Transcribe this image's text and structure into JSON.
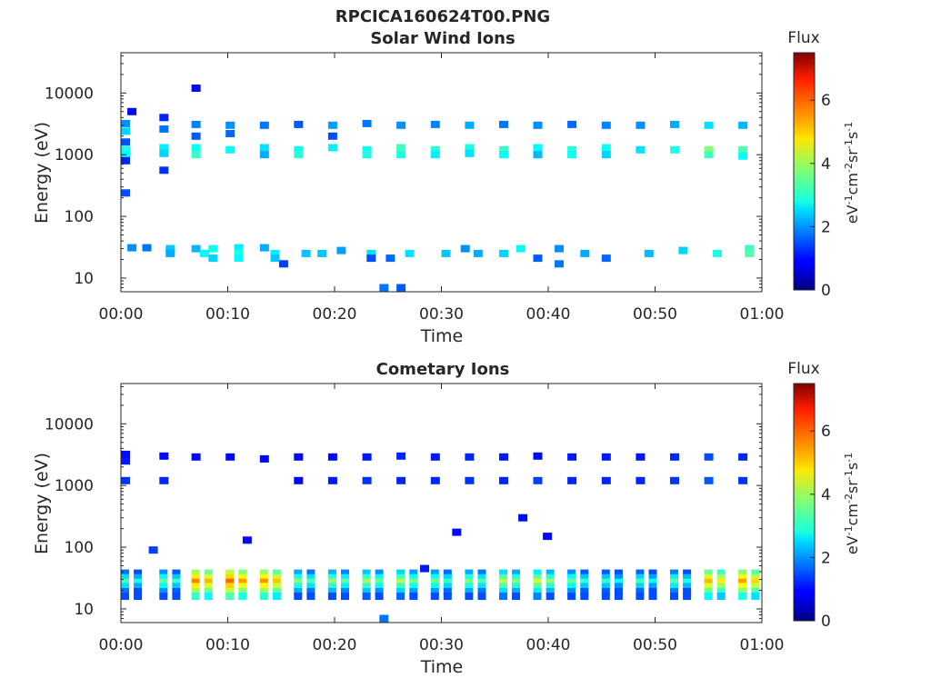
{
  "figure": {
    "title": "RPCICA160624T00.PNG"
  },
  "chart_data": [
    {
      "type": "heatmap",
      "title": "Solar Wind Ions",
      "xlabel": "Time",
      "ylabel": "Energy (eV)",
      "x_ticks": [
        "00:00",
        "00:10",
        "00:20",
        "00:30",
        "00:40",
        "00:50",
        "01:00"
      ],
      "xlim": [
        "00:00",
        "01:00"
      ],
      "y_scale": "log",
      "y_ticks": [
        "10",
        "100",
        "1000",
        "10000"
      ],
      "ylim": [
        6,
        45000
      ],
      "colorbar": {
        "title": "Flux",
        "label": "eV-1cm-2sr-1s-1",
        "ticks": [
          "0",
          "2",
          "4",
          "6"
        ],
        "range": [
          0,
          7.5
        ]
      },
      "scan_times_min": [
        0.0,
        3.6,
        6.6,
        9.8,
        13.0,
        16.2,
        19.4,
        22.6,
        25.8,
        29.0,
        32.2,
        35.4,
        38.6,
        41.8,
        45.0,
        48.2,
        51.4,
        54.6,
        57.8
      ],
      "cells": [
        {
          "t": 0.0,
          "e": 3200,
          "f": 2.0
        },
        {
          "t": 0.0,
          "e": 2400,
          "f": 2.5
        },
        {
          "t": 0.0,
          "e": 1600,
          "f": 1.5
        },
        {
          "t": 0.0,
          "e": 1200,
          "f": 3.0
        },
        {
          "t": 0.0,
          "e": 1000,
          "f": 2.8
        },
        {
          "t": 0.0,
          "e": 800,
          "f": 1.2
        },
        {
          "t": 0.6,
          "e": 5000,
          "f": 1.0
        },
        {
          "t": 0.0,
          "e": 240,
          "f": 1.5
        },
        {
          "t": 3.6,
          "e": 4000,
          "f": 1.2
        },
        {
          "t": 3.6,
          "e": 2600,
          "f": 1.8
        },
        {
          "t": 3.6,
          "e": 1300,
          "f": 2.7
        },
        {
          "t": 3.6,
          "e": 1050,
          "f": 2.5
        },
        {
          "t": 3.6,
          "e": 560,
          "f": 1.3
        },
        {
          "t": 6.6,
          "e": 3100,
          "f": 1.9
        },
        {
          "t": 6.6,
          "e": 2000,
          "f": 1.6
        },
        {
          "t": 6.6,
          "e": 1300,
          "f": 2.9
        },
        {
          "t": 6.6,
          "e": 1000,
          "f": 3.2
        },
        {
          "t": 6.6,
          "e": 12000,
          "f": 1.0
        },
        {
          "t": 9.8,
          "e": 3000,
          "f": 2.0
        },
        {
          "t": 9.8,
          "e": 2200,
          "f": 1.7
        },
        {
          "t": 9.8,
          "e": 1200,
          "f": 2.8
        },
        {
          "t": 13.0,
          "e": 3000,
          "f": 1.8
        },
        {
          "t": 13.0,
          "e": 1300,
          "f": 2.6
        },
        {
          "t": 13.0,
          "e": 1000,
          "f": 2.2
        },
        {
          "t": 16.2,
          "e": 3100,
          "f": 1.6
        },
        {
          "t": 16.2,
          "e": 1200,
          "f": 2.9
        },
        {
          "t": 16.2,
          "e": 1000,
          "f": 3.1
        },
        {
          "t": 19.4,
          "e": 3000,
          "f": 2.1
        },
        {
          "t": 19.4,
          "e": 1300,
          "f": 2.7
        },
        {
          "t": 19.4,
          "e": 2000,
          "f": 1.5
        },
        {
          "t": 22.6,
          "e": 3200,
          "f": 1.8
        },
        {
          "t": 22.6,
          "e": 1200,
          "f": 2.9
        },
        {
          "t": 22.6,
          "e": 1000,
          "f": 3.0
        },
        {
          "t": 25.8,
          "e": 3000,
          "f": 2.0
        },
        {
          "t": 25.8,
          "e": 1300,
          "f": 3.3
        },
        {
          "t": 25.8,
          "e": 1000,
          "f": 3.0
        },
        {
          "t": 29.0,
          "e": 3100,
          "f": 1.9
        },
        {
          "t": 29.0,
          "e": 1200,
          "f": 3.1
        },
        {
          "t": 29.0,
          "e": 1000,
          "f": 2.7
        },
        {
          "t": 32.2,
          "e": 3000,
          "f": 2.2
        },
        {
          "t": 32.2,
          "e": 1300,
          "f": 3.0
        },
        {
          "t": 32.2,
          "e": 1050,
          "f": 2.6
        },
        {
          "t": 35.4,
          "e": 3100,
          "f": 1.8
        },
        {
          "t": 35.4,
          "e": 1200,
          "f": 3.2
        },
        {
          "t": 35.4,
          "e": 1000,
          "f": 2.9
        },
        {
          "t": 38.6,
          "e": 3000,
          "f": 2.0
        },
        {
          "t": 38.6,
          "e": 1300,
          "f": 2.8
        },
        {
          "t": 38.6,
          "e": 1000,
          "f": 2.3
        },
        {
          "t": 41.8,
          "e": 3100,
          "f": 1.7
        },
        {
          "t": 41.8,
          "e": 1200,
          "f": 3.1
        },
        {
          "t": 41.8,
          "e": 1000,
          "f": 2.9
        },
        {
          "t": 45.0,
          "e": 3000,
          "f": 1.9
        },
        {
          "t": 45.0,
          "e": 1300,
          "f": 2.9
        },
        {
          "t": 45.0,
          "e": 1000,
          "f": 2.5
        },
        {
          "t": 48.2,
          "e": 3000,
          "f": 2.0
        },
        {
          "t": 48.2,
          "e": 1200,
          "f": 2.6
        },
        {
          "t": 51.4,
          "e": 3100,
          "f": 2.2
        },
        {
          "t": 51.4,
          "e": 1200,
          "f": 3.0
        },
        {
          "t": 54.6,
          "e": 3000,
          "f": 2.6
        },
        {
          "t": 54.6,
          "e": 1200,
          "f": 3.8
        },
        {
          "t": 54.6,
          "e": 1000,
          "f": 3.3
        },
        {
          "t": 57.8,
          "e": 3000,
          "f": 2.3
        },
        {
          "t": 57.8,
          "e": 1200,
          "f": 3.4
        },
        {
          "t": 57.8,
          "e": 950,
          "f": 2.8
        },
        {
          "t": 0.6,
          "e": 31,
          "f": 2.0
        },
        {
          "t": 2.0,
          "e": 31,
          "f": 1.8
        },
        {
          "t": 4.2,
          "e": 30,
          "f": 2.4
        },
        {
          "t": 4.2,
          "e": 25,
          "f": 2.2
        },
        {
          "t": 6.6,
          "e": 30,
          "f": 2.3
        },
        {
          "t": 7.4,
          "e": 25,
          "f": 2.8
        },
        {
          "t": 8.2,
          "e": 21,
          "f": 2.5
        },
        {
          "t": 8.2,
          "e": 30,
          "f": 2.9
        },
        {
          "t": 10.6,
          "e": 31,
          "f": 2.7
        },
        {
          "t": 10.6,
          "e": 25,
          "f": 3.0
        },
        {
          "t": 10.6,
          "e": 21,
          "f": 2.8
        },
        {
          "t": 13.0,
          "e": 31,
          "f": 2.2
        },
        {
          "t": 14.0,
          "e": 25,
          "f": 2.7
        },
        {
          "t": 14.0,
          "e": 21,
          "f": 2.4
        },
        {
          "t": 14.8,
          "e": 17,
          "f": 1.4
        },
        {
          "t": 16.9,
          "e": 25,
          "f": 2.4
        },
        {
          "t": 18.4,
          "e": 25,
          "f": 2.4
        },
        {
          "t": 20.2,
          "e": 28,
          "f": 2.1
        },
        {
          "t": 23.0,
          "e": 25,
          "f": 2.6
        },
        {
          "t": 23.0,
          "e": 21,
          "f": 1.5
        },
        {
          "t": 24.8,
          "e": 21,
          "f": 1.7
        },
        {
          "t": 26.6,
          "e": 25,
          "f": 2.6
        },
        {
          "t": 30.0,
          "e": 25,
          "f": 2.4
        },
        {
          "t": 31.8,
          "e": 30,
          "f": 2.0
        },
        {
          "t": 33.0,
          "e": 25,
          "f": 2.2
        },
        {
          "t": 35.4,
          "e": 25,
          "f": 2.5
        },
        {
          "t": 37.0,
          "e": 30,
          "f": 2.8
        },
        {
          "t": 38.6,
          "e": 21,
          "f": 1.6
        },
        {
          "t": 40.6,
          "e": 30,
          "f": 2.0
        },
        {
          "t": 40.6,
          "e": 17,
          "f": 1.8
        },
        {
          "t": 43.0,
          "e": 25,
          "f": 2.2
        },
        {
          "t": 45.0,
          "e": 21,
          "f": 1.7
        },
        {
          "t": 49.0,
          "e": 25,
          "f": 2.3
        },
        {
          "t": 52.2,
          "e": 28,
          "f": 2.5
        },
        {
          "t": 55.4,
          "e": 25,
          "f": 3.0
        },
        {
          "t": 58.4,
          "e": 30,
          "f": 3.2
        },
        {
          "t": 58.4,
          "e": 25,
          "f": 3.4
        },
        {
          "t": 24.2,
          "e": 7,
          "f": 1.8
        },
        {
          "t": 25.8,
          "e": 7,
          "f": 1.6
        }
      ]
    },
    {
      "type": "heatmap",
      "title": "Cometary Ions",
      "xlabel": "Time",
      "ylabel": "Energy (eV)",
      "x_ticks": [
        "00:00",
        "00:10",
        "00:20",
        "00:30",
        "00:40",
        "00:50",
        "01:00"
      ],
      "xlim": [
        "00:00",
        "01:00"
      ],
      "y_scale": "log",
      "y_ticks": [
        "10",
        "100",
        "1000",
        "10000"
      ],
      "ylim": [
        6,
        45000
      ],
      "colorbar": {
        "title": "Flux",
        "label": "eV-1cm-2sr-1s-1",
        "ticks": [
          "0",
          "2",
          "4",
          "6"
        ],
        "range": [
          0,
          7.5
        ]
      },
      "cells": [
        {
          "t": 0.0,
          "e": 3200,
          "f": 1.0
        },
        {
          "t": 0.0,
          "e": 2500,
          "f": 1.1
        },
        {
          "t": 0.0,
          "e": 1200,
          "f": 1.3
        },
        {
          "t": 3.6,
          "e": 3000,
          "f": 1.0
        },
        {
          "t": 3.6,
          "e": 1200,
          "f": 1.2
        },
        {
          "t": 6.6,
          "e": 2900,
          "f": 1.0
        },
        {
          "t": 9.8,
          "e": 2900,
          "f": 1.0
        },
        {
          "t": 13.0,
          "e": 2700,
          "f": 1.0
        },
        {
          "t": 16.2,
          "e": 2900,
          "f": 1.0
        },
        {
          "t": 16.2,
          "e": 1200,
          "f": 1.0
        },
        {
          "t": 19.4,
          "e": 2900,
          "f": 1.0
        },
        {
          "t": 19.4,
          "e": 1200,
          "f": 1.1
        },
        {
          "t": 22.6,
          "e": 2900,
          "f": 1.1
        },
        {
          "t": 22.6,
          "e": 1200,
          "f": 1.3
        },
        {
          "t": 25.8,
          "e": 3000,
          "f": 1.2
        },
        {
          "t": 25.8,
          "e": 1200,
          "f": 1.2
        },
        {
          "t": 29.0,
          "e": 2900,
          "f": 1.1
        },
        {
          "t": 29.0,
          "e": 1200,
          "f": 1.2
        },
        {
          "t": 32.2,
          "e": 2900,
          "f": 1.2
        },
        {
          "t": 32.2,
          "e": 1200,
          "f": 1.3
        },
        {
          "t": 35.4,
          "e": 2900,
          "f": 1.1
        },
        {
          "t": 35.4,
          "e": 1200,
          "f": 1.2
        },
        {
          "t": 38.6,
          "e": 3000,
          "f": 1.0
        },
        {
          "t": 38.6,
          "e": 1200,
          "f": 1.4
        },
        {
          "t": 41.8,
          "e": 2900,
          "f": 1.1
        },
        {
          "t": 41.8,
          "e": 1200,
          "f": 1.2
        },
        {
          "t": 45.0,
          "e": 2900,
          "f": 1.1
        },
        {
          "t": 45.0,
          "e": 1200,
          "f": 1.2
        },
        {
          "t": 48.2,
          "e": 2900,
          "f": 1.1
        },
        {
          "t": 48.2,
          "e": 1200,
          "f": 1.2
        },
        {
          "t": 51.4,
          "e": 2900,
          "f": 1.2
        },
        {
          "t": 51.4,
          "e": 1200,
          "f": 1.3
        },
        {
          "t": 54.6,
          "e": 2900,
          "f": 1.5
        },
        {
          "t": 54.6,
          "e": 1200,
          "f": 1.6
        },
        {
          "t": 57.8,
          "e": 2900,
          "f": 1.2
        },
        {
          "t": 57.8,
          "e": 1200,
          "f": 1.3
        },
        {
          "t": 2.6,
          "e": 90,
          "f": 1.4
        },
        {
          "t": 11.4,
          "e": 130,
          "f": 1.0
        },
        {
          "t": 31.0,
          "e": 175,
          "f": 1.0
        },
        {
          "t": 37.2,
          "e": 300,
          "f": 1.0
        },
        {
          "t": 39.5,
          "e": 150,
          "f": 1.0
        },
        {
          "t": 28.0,
          "e": 45,
          "f": 1.1
        },
        {
          "t": 24.2,
          "e": 7,
          "f": 1.8
        }
      ],
      "low_band": {
        "times_min": [
          0.0,
          3.6,
          6.6,
          9.8,
          13.0,
          16.2,
          19.4,
          22.6,
          25.8,
          29.0,
          32.2,
          35.4,
          38.6,
          41.8,
          45.0,
          48.2,
          51.4,
          54.6,
          57.8
        ],
        "peak_flux": [
          3.4,
          3.6,
          5.6,
          5.8,
          5.5,
          3.8,
          3.9,
          4.0,
          4.1,
          3.7,
          3.8,
          4.2,
          4.3,
          3.6,
          3.2,
          3.3,
          3.5,
          5.2,
          5.4
        ]
      }
    }
  ]
}
